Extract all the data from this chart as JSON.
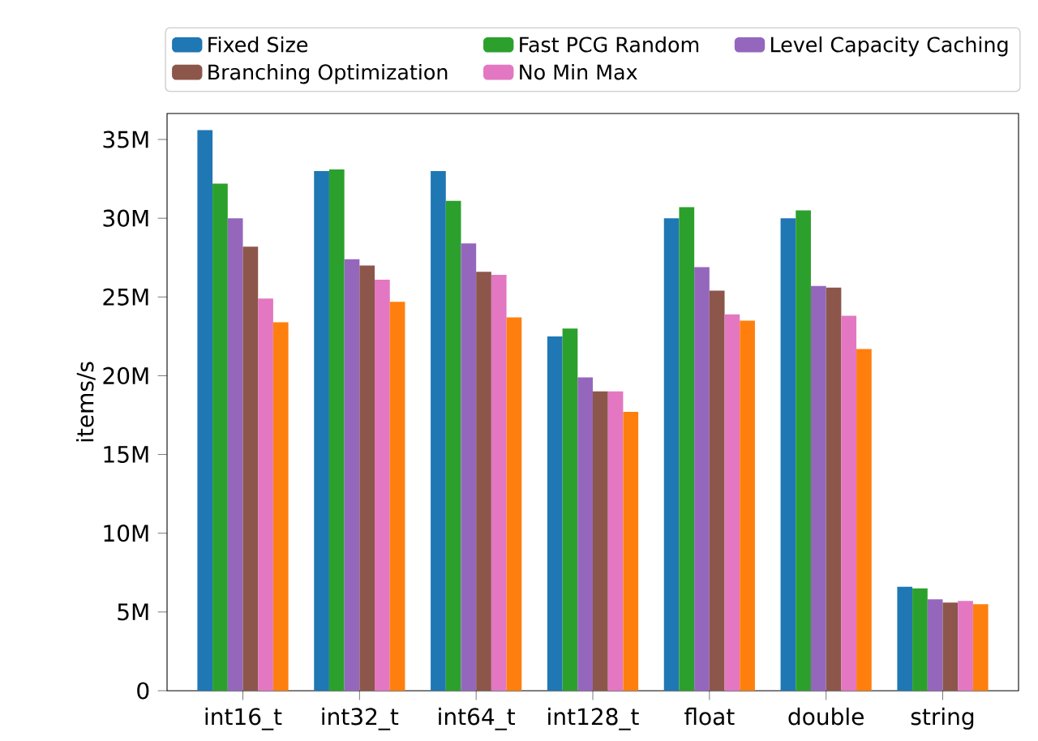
{
  "chart_data": {
    "type": "bar",
    "ylabel": "items/s",
    "categories": [
      "int16_t",
      "int32_t",
      "int64_t",
      "int128_t",
      "float",
      "double",
      "string"
    ],
    "series": [
      {
        "name": "Fixed Size",
        "color": "#1f77b4",
        "values": [
          35600000,
          33000000,
          33000000,
          22500000,
          30000000,
          30000000,
          6600000
        ]
      },
      {
        "name": "Fast PCG Random",
        "color": "#2ca02c",
        "values": [
          32200000,
          33100000,
          31100000,
          23000000,
          30700000,
          30500000,
          6500000
        ]
      },
      {
        "name": "Level Capacity Caching",
        "color": "#9467bd",
        "values": [
          30000000,
          27400000,
          28400000,
          19900000,
          26900000,
          25700000,
          5800000
        ]
      },
      {
        "name": "Branching Optimization",
        "color": "#8c564b",
        "values": [
          28200000,
          27000000,
          26600000,
          19000000,
          25400000,
          25600000,
          5600000
        ]
      },
      {
        "name": "No Min Max",
        "color": "#e377c2",
        "values": [
          24900000,
          26100000,
          26400000,
          19000000,
          23900000,
          23800000,
          5700000
        ]
      },
      {
        "color": "#ff7f0e",
        "values": [
          23400000,
          24700000,
          23700000,
          17700000,
          23500000,
          21700000,
          5500000
        ]
      }
    ],
    "ylim": [
      0,
      36650000
    ],
    "yticks": [
      {
        "value": 0,
        "label": "0"
      },
      {
        "value": 5000000,
        "label": "5M"
      },
      {
        "value": 10000000,
        "label": "10M"
      },
      {
        "value": 15000000,
        "label": "15M"
      },
      {
        "value": 20000000,
        "label": "20M"
      },
      {
        "value": 25000000,
        "label": "25M"
      },
      {
        "value": 30000000,
        "label": "30M"
      },
      {
        "value": 35000000,
        "label": "35M"
      }
    ],
    "legend": "top",
    "grid": false
  }
}
